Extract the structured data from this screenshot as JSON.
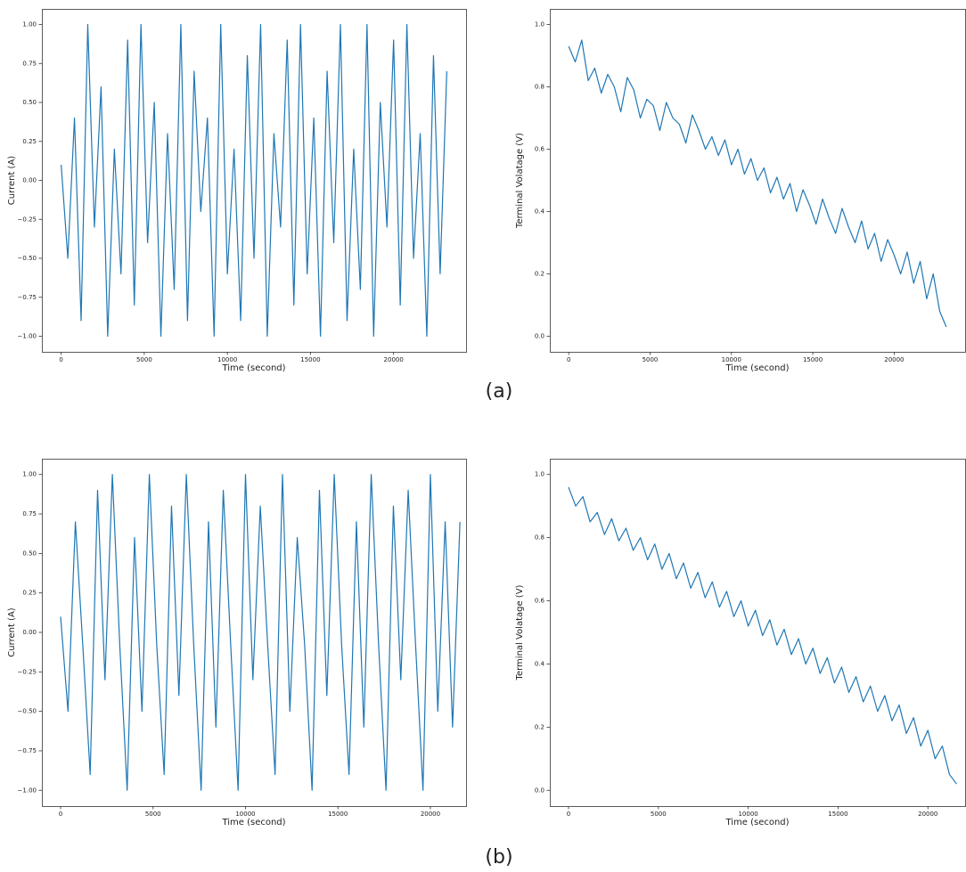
{
  "captions": [
    "(a)",
    "(b)"
  ],
  "chart_data": [
    {
      "type": "line",
      "xlabel": "Time (second)",
      "ylabel": "Current (A)",
      "xlim": [
        -1160,
        24360
      ],
      "xticks": [
        0,
        5000,
        10000,
        15000,
        20000
      ],
      "ylim": [
        -1.1,
        1.1
      ],
      "yticks": [
        {
          "value": -1,
          "label": "−1.00"
        },
        {
          "value": -0.75,
          "label": "−0.75"
        },
        {
          "value": -0.5,
          "label": "−0.50"
        },
        {
          "value": -0.25,
          "label": "−0.25"
        },
        {
          "value": 0,
          "label": "0.00"
        },
        {
          "value": 0.25,
          "label": "0.25"
        },
        {
          "value": 0.5,
          "label": "0.50"
        },
        {
          "value": 0.75,
          "label": "0.75"
        },
        {
          "value": 1,
          "label": "1.00"
        }
      ],
      "x": [
        0,
        400,
        800,
        1200,
        1600,
        2000,
        2400,
        2800,
        3200,
        3600,
        4000,
        4400,
        4800,
        5200,
        5600,
        6000,
        6400,
        6800,
        7200,
        7600,
        8000,
        8400,
        8800,
        9200,
        9600,
        10000,
        10400,
        10800,
        11200,
        11600,
        12000,
        12400,
        12800,
        13200,
        13600,
        14000,
        14400,
        14800,
        15200,
        15600,
        16000,
        16400,
        16800,
        17200,
        17600,
        18000,
        18400,
        18800,
        19200,
        19600,
        20000,
        20400,
        20800,
        21200,
        21600,
        22000,
        22400,
        22800,
        23200
      ],
      "series": [
        {
          "color": "#1f77b4",
          "values": [
            0.1,
            -0.5,
            0.4,
            -0.9,
            1.0,
            -0.3,
            0.6,
            -1.0,
            0.2,
            -0.6,
            0.9,
            -0.8,
            1.0,
            -0.4,
            0.5,
            -1.0,
            0.3,
            -0.7,
            1.0,
            -0.9,
            0.7,
            -0.2,
            0.4,
            -1.0,
            1.0,
            -0.6,
            0.2,
            -0.9,
            0.8,
            -0.5,
            1.0,
            -1.0,
            0.3,
            -0.3,
            0.9,
            -0.8,
            1.0,
            -0.6,
            0.4,
            -1.0,
            0.7,
            -0.4,
            1.0,
            -0.9,
            0.2,
            -0.7,
            1.0,
            -1.0,
            0.5,
            -0.3,
            0.9,
            -0.8,
            1.0,
            -0.5,
            0.3,
            -1.0,
            0.8,
            -0.6,
            0.7
          ]
        }
      ]
    },
    {
      "type": "line",
      "xlabel": "Time (second)",
      "ylabel": "Terminal Volatage (V)",
      "xlim": [
        -1160,
        24360
      ],
      "xticks": [
        0,
        5000,
        10000,
        15000,
        20000
      ],
      "ylim": [
        -0.05,
        1.05
      ],
      "yticks": [
        {
          "value": 0,
          "label": "0.0"
        },
        0.2,
        0.4,
        0.6,
        0.8,
        {
          "value": 1,
          "label": "1.0"
        }
      ],
      "x": [
        0,
        400,
        800,
        1200,
        1600,
        2000,
        2400,
        2800,
        3200,
        3600,
        4000,
        4400,
        4800,
        5200,
        5600,
        6000,
        6400,
        6800,
        7200,
        7600,
        8000,
        8400,
        8800,
        9200,
        9600,
        10000,
        10400,
        10800,
        11200,
        11600,
        12000,
        12400,
        12800,
        13200,
        13600,
        14000,
        14400,
        14800,
        15200,
        15600,
        16000,
        16400,
        16800,
        17200,
        17600,
        18000,
        18400,
        18800,
        19200,
        19600,
        20000,
        20400,
        20800,
        21200,
        21600,
        22000,
        22400,
        22800,
        23200
      ],
      "series": [
        {
          "color": "#1f77b4",
          "values": [
            0.93,
            0.88,
            0.95,
            0.82,
            0.86,
            0.78,
            0.84,
            0.8,
            0.72,
            0.83,
            0.79,
            0.7,
            0.76,
            0.74,
            0.66,
            0.75,
            0.7,
            0.68,
            0.62,
            0.71,
            0.66,
            0.6,
            0.64,
            0.58,
            0.63,
            0.55,
            0.6,
            0.52,
            0.57,
            0.5,
            0.54,
            0.46,
            0.51,
            0.44,
            0.49,
            0.4,
            0.47,
            0.42,
            0.36,
            0.44,
            0.38,
            0.33,
            0.41,
            0.35,
            0.3,
            0.37,
            0.28,
            0.33,
            0.24,
            0.31,
            0.26,
            0.2,
            0.27,
            0.17,
            0.24,
            0.12,
            0.2,
            0.08,
            0.03
          ]
        }
      ]
    },
    {
      "type": "line",
      "xlabel": "Time (second)",
      "ylabel": "Current (A)",
      "xlim": [
        -1012,
        21930
      ],
      "xticks": [
        0,
        5000,
        10000,
        15000,
        20000
      ],
      "ylim": [
        -1.1,
        1.1
      ],
      "yticks": [
        {
          "value": -1,
          "label": "−1.00"
        },
        {
          "value": -0.75,
          "label": "−0.75"
        },
        {
          "value": -0.5,
          "label": "−0.50"
        },
        {
          "value": -0.25,
          "label": "−0.25"
        },
        {
          "value": 0,
          "label": "0.00"
        },
        {
          "value": 0.25,
          "label": "0.25"
        },
        {
          "value": 0.5,
          "label": "0.50"
        },
        {
          "value": 0.75,
          "label": "0.75"
        },
        {
          "value": 1,
          "label": "1.00"
        }
      ],
      "x": [
        0,
        400,
        800,
        1200,
        1600,
        2000,
        2400,
        2800,
        3200,
        3600,
        4000,
        4400,
        4800,
        5200,
        5600,
        6000,
        6400,
        6800,
        7200,
        7600,
        8000,
        8400,
        8800,
        9200,
        9600,
        10000,
        10400,
        10800,
        11200,
        11600,
        12000,
        12400,
        12800,
        13200,
        13600,
        14000,
        14400,
        14800,
        15200,
        15600,
        16000,
        16400,
        16800,
        17200,
        17600,
        18000,
        18400,
        18800,
        19200,
        19600,
        20000,
        20400,
        20800,
        21200,
        21600
      ],
      "series": [
        {
          "color": "#1f77b4",
          "values": [
            0.1,
            -0.5,
            0.7,
            -0.08,
            -0.9,
            0.9,
            -0.3,
            1.0,
            -0.08,
            -1.0,
            0.6,
            -0.5,
            1.0,
            -0.08,
            -0.9,
            0.8,
            -0.4,
            1.0,
            -0.08,
            -1.0,
            0.7,
            -0.6,
            0.9,
            -0.08,
            -1.0,
            1.0,
            -0.3,
            0.8,
            -0.08,
            -0.9,
            1.0,
            -0.5,
            0.6,
            -0.08,
            -1.0,
            0.9,
            -0.4,
            1.0,
            -0.08,
            -0.9,
            0.7,
            -0.6,
            1.0,
            -0.08,
            -1.0,
            0.8,
            -0.3,
            0.9,
            -0.08,
            -1.0,
            1.0,
            -0.5,
            0.7,
            -0.6,
            0.7
          ]
        }
      ]
    },
    {
      "type": "line",
      "xlabel": "Time (second)",
      "ylabel": "Terminal Volatage (V)",
      "xlim": [
        -1040,
        22070
      ],
      "xticks": [
        0,
        5000,
        10000,
        15000,
        20000
      ],
      "ylim": [
        -0.05,
        1.05
      ],
      "yticks": [
        {
          "value": 0,
          "label": "0.0"
        },
        0.2,
        0.4,
        0.6,
        0.8,
        {
          "value": 1,
          "label": "1.0"
        }
      ],
      "x": [
        0,
        400,
        800,
        1200,
        1600,
        2000,
        2400,
        2800,
        3200,
        3600,
        4000,
        4400,
        4800,
        5200,
        5600,
        6000,
        6400,
        6800,
        7200,
        7600,
        8000,
        8400,
        8800,
        9200,
        9600,
        10000,
        10400,
        10800,
        11200,
        11600,
        12000,
        12400,
        12800,
        13200,
        13600,
        14000,
        14400,
        14800,
        15200,
        15600,
        16000,
        16400,
        16800,
        17200,
        17600,
        18000,
        18400,
        18800,
        19200,
        19600,
        20000,
        20400,
        20800,
        21200,
        21600
      ],
      "series": [
        {
          "color": "#1f77b4",
          "values": [
            0.96,
            0.9,
            0.93,
            0.85,
            0.88,
            0.81,
            0.86,
            0.79,
            0.83,
            0.76,
            0.8,
            0.73,
            0.78,
            0.7,
            0.75,
            0.67,
            0.72,
            0.64,
            0.69,
            0.61,
            0.66,
            0.58,
            0.63,
            0.55,
            0.6,
            0.52,
            0.57,
            0.49,
            0.54,
            0.46,
            0.51,
            0.43,
            0.48,
            0.4,
            0.45,
            0.37,
            0.42,
            0.34,
            0.39,
            0.31,
            0.36,
            0.28,
            0.33,
            0.25,
            0.3,
            0.22,
            0.27,
            0.18,
            0.23,
            0.14,
            0.19,
            0.1,
            0.14,
            0.05,
            0.02
          ]
        }
      ]
    }
  ]
}
